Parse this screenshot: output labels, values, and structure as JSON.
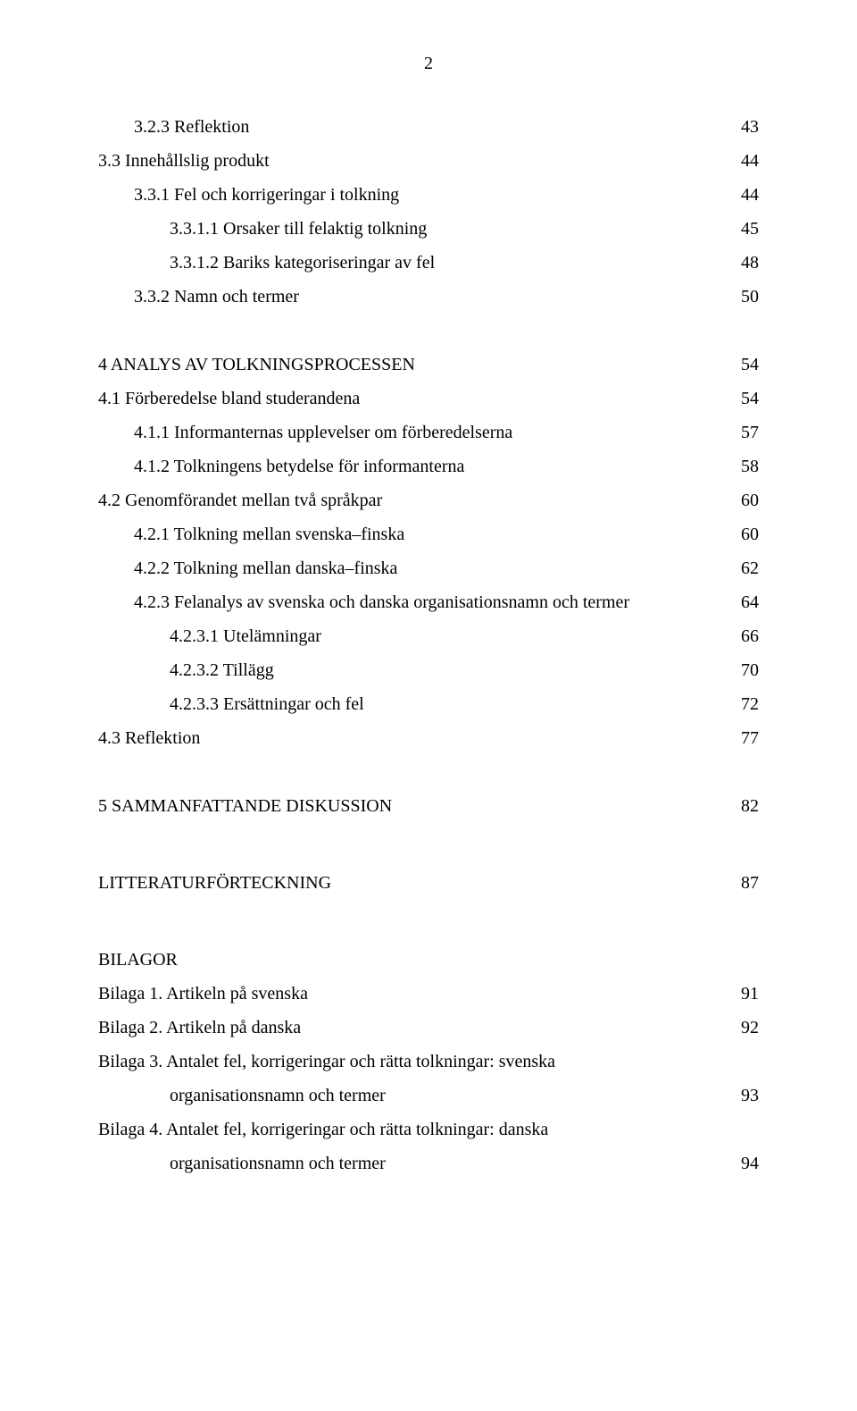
{
  "pageNumber": "2",
  "entries": [
    {
      "indent": 1,
      "label": "3.2.3 Reflektion",
      "page": "43"
    },
    {
      "indent": 0,
      "label": "3.3 Innehållslig produkt",
      "page": "44"
    },
    {
      "indent": 1,
      "label": "3.3.1 Fel och korrigeringar i tolkning",
      "page": "44"
    },
    {
      "indent": 2,
      "label": "3.3.1.1 Orsaker till felaktig tolkning",
      "page": "45"
    },
    {
      "indent": 2,
      "label": "3.3.1.2 Bariks kategoriseringar av fel",
      "page": "48"
    },
    {
      "indent": 1,
      "label": "3.3.2 Namn och termer",
      "page": "50"
    }
  ],
  "section4": {
    "label": "4 ANALYS AV TOLKNINGSPROCESSEN",
    "page": "54"
  },
  "entries4": [
    {
      "indent": 0,
      "label": "4.1 Förberedelse bland studerandena",
      "page": "54"
    },
    {
      "indent": 1,
      "label": "4.1.1 Informanternas upplevelser om förberedelserna",
      "page": "57"
    },
    {
      "indent": 1,
      "label": "4.1.2 Tolkningens betydelse för informanterna",
      "page": "58"
    },
    {
      "indent": 0,
      "label": "4.2 Genomförandet mellan två språkpar",
      "page": "60"
    },
    {
      "indent": 1,
      "label": "4.2.1 Tolkning mellan svenska–finska",
      "page": "60"
    },
    {
      "indent": 1,
      "label": "4.2.2 Tolkning mellan danska–finska",
      "page": "62"
    },
    {
      "indent": 1,
      "label": "4.2.3 Felanalys av svenska och danska organisationsnamn och termer",
      "page": "64"
    },
    {
      "indent": 2,
      "label": "4.2.3.1 Utelämningar",
      "page": "66"
    },
    {
      "indent": 2,
      "label": "4.2.3.2 Tillägg",
      "page": "70"
    },
    {
      "indent": 2,
      "label": "4.2.3.3 Ersättningar och fel",
      "page": "72"
    },
    {
      "indent": 0,
      "label": "4.3 Reflektion",
      "page": "77"
    }
  ],
  "section5": {
    "label": "5 SAMMANFATTANDE DISKUSSION",
    "page": "82"
  },
  "litt": {
    "label": "LITTERATURFÖRTECKNING",
    "page": "87"
  },
  "bilagorHeading": "BILAGOR",
  "bilagor": [
    {
      "label": "Bilaga 1. Artikeln på svenska",
      "page": "91"
    },
    {
      "label": "Bilaga 2. Artikeln på danska",
      "page": "92"
    }
  ],
  "bilaga3": {
    "line1": "Bilaga 3. Antalet fel, korrigeringar och rätta tolkningar: svenska",
    "line2": "organisationsnamn och termer",
    "page": "93"
  },
  "bilaga4": {
    "line1": "Bilaga 4. Antalet fel, korrigeringar och rätta tolkningar: danska",
    "line2": "organisationsnamn och termer",
    "page": "94"
  }
}
